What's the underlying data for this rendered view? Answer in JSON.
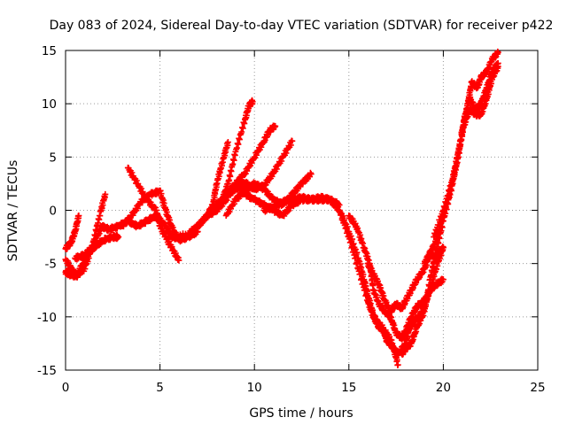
{
  "chart_data": {
    "type": "scatter",
    "title": "Day 083 of 2024, Sidereal Day-to-day VTEC variation (SDTVAR) for receiver p422",
    "xlabel": "GPS time / hours",
    "ylabel": "SDTVAR / TECUs",
    "xlim": [
      0,
      25
    ],
    "ylim": [
      -15,
      15
    ],
    "x_ticks": [
      "0",
      "5",
      "10",
      "15",
      "20",
      "25"
    ],
    "y_ticks": [
      "-15",
      "-10",
      "-5",
      "0",
      "5",
      "10",
      "15"
    ],
    "grid": true,
    "marker": "+",
    "color": "#ff0000",
    "series": [
      {
        "x": [
          0.0,
          0.3,
          0.5,
          0.7
        ],
        "y": [
          -3.6,
          -3.0,
          -2.0,
          -0.5
        ]
      },
      {
        "x": [
          0.0,
          0.3,
          0.6,
          1.0,
          1.4,
          1.8,
          2.1
        ],
        "y": [
          -4.6,
          -5.5,
          -6.1,
          -5.5,
          -3.5,
          -0.5,
          1.5
        ]
      },
      {
        "x": [
          0.0,
          0.2,
          0.6,
          0.9,
          1.2,
          1.5,
          2.0,
          2.5,
          2.8
        ],
        "y": [
          -5.8,
          -6.0,
          -6.2,
          -5.0,
          -4.0,
          -3.5,
          -2.8,
          -2.5,
          -2.5
        ]
      },
      {
        "x": [
          0.5,
          1.0,
          1.5,
          1.9,
          2.3,
          2.8,
          3.3,
          3.8,
          4.3,
          4.8,
          5.3,
          5.6,
          6.1
        ],
        "y": [
          -4.5,
          -4.2,
          -3.3,
          -1.5,
          -1.8,
          -1.5,
          -1.0,
          -1.5,
          -1.0,
          -0.5,
          -1.5,
          -2.5,
          -2.6
        ]
      },
      {
        "x": [
          3.3,
          3.8,
          4.3,
          4.8,
          5.0,
          5.3,
          5.6,
          6.0
        ],
        "y": [
          4.0,
          2.5,
          1.0,
          0.0,
          -1.5,
          -2.5,
          -3.5,
          -4.7
        ]
      },
      {
        "x": [
          3.0,
          3.5,
          4.0,
          4.5,
          5.0,
          5.3,
          5.6,
          6.0,
          6.5,
          7.0
        ],
        "y": [
          -1.5,
          -0.5,
          0.8,
          1.5,
          1.8,
          0.0,
          -1.5,
          -2.8,
          -2.5,
          -2.0
        ]
      },
      {
        "x": [
          5.5,
          6.5,
          7.0,
          7.5,
          8.0,
          8.3,
          8.6,
          9.0,
          9.5,
          9.7,
          9.9
        ],
        "y": [
          -2.5,
          -2.3,
          -1.5,
          -0.5,
          0.5,
          1.0,
          2.5,
          5.5,
          8.5,
          9.8,
          10.2
        ]
      },
      {
        "x": [
          6.5,
          7.0,
          7.5,
          7.8,
          8.0,
          8.3,
          8.6
        ],
        "y": [
          -2.2,
          -1.5,
          -0.5,
          0.5,
          2.5,
          4.5,
          6.4
        ]
      },
      {
        "x": [
          7.5,
          8.0,
          8.5,
          9.0,
          9.5,
          10.0,
          10.5,
          10.8,
          11.1
        ],
        "y": [
          -0.5,
          0.0,
          1.0,
          2.5,
          3.5,
          5.0,
          6.5,
          7.5,
          7.9
        ]
      },
      {
        "x": [
          8.0,
          8.5,
          9.0,
          9.5,
          10.0,
          10.5,
          11.0,
          11.5,
          12.0
        ],
        "y": [
          0.5,
          1.3,
          2.0,
          2.6,
          2.0,
          2.3,
          3.5,
          5.0,
          6.5
        ]
      },
      {
        "x": [
          8.5,
          9.0,
          9.5,
          10.0,
          10.5,
          11.0,
          11.5,
          12.0,
          12.5,
          13.0
        ],
        "y": [
          -0.5,
          1.0,
          1.8,
          2.5,
          2.0,
          1.0,
          0.5,
          1.5,
          2.5,
          3.4
        ]
      },
      {
        "x": [
          8.5,
          9.0,
          9.5,
          10.0,
          10.5,
          11.0,
          11.5,
          12.0,
          12.5,
          13.0,
          13.5,
          14.0,
          14.5
        ],
        "y": [
          1.5,
          2.5,
          1.5,
          1.0,
          0.5,
          0.0,
          -0.5,
          0.5,
          1.0,
          1.0,
          1.2,
          1.0,
          0.5
        ]
      },
      {
        "x": [
          10.5,
          11.0,
          11.5,
          12.0,
          12.5,
          13.0,
          13.5,
          14.0,
          14.5,
          15.0,
          15.5,
          16.0,
          16.3,
          16.6,
          17.0,
          17.3,
          17.6
        ],
        "y": [
          0.0,
          0.3,
          0.8,
          1.0,
          1.2,
          1.0,
          1.0,
          1.0,
          0.0,
          -2.5,
          -5.5,
          -8.5,
          -10.0,
          -11.0,
          -11.5,
          -12.5,
          -14.5
        ]
      },
      {
        "x": [
          14.0,
          14.5,
          15.0,
          15.5,
          15.8,
          16.0,
          16.3,
          16.5,
          16.8,
          17.0,
          17.3,
          17.6,
          18.0,
          18.2,
          18.5,
          18.8,
          19.0,
          19.3,
          19.6,
          20.0
        ],
        "y": [
          1.0,
          0.0,
          -2.0,
          -4.5,
          -6.5,
          -8.0,
          -9.8,
          -10.5,
          -11.0,
          -12.2,
          -12.8,
          -13.5,
          -12.5,
          -11.0,
          -10.3,
          -9.8,
          -9.0,
          -7.5,
          -5.5,
          -3.5
        ]
      },
      {
        "x": [
          15.0,
          15.4,
          15.8,
          16.1,
          16.3,
          16.6,
          16.9,
          17.2,
          17.5,
          17.8,
          18.0,
          18.3,
          18.6,
          19.0,
          19.3,
          19.6,
          20.0
        ],
        "y": [
          -0.5,
          -1.5,
          -3.5,
          -5.0,
          -7.5,
          -8.8,
          -9.5,
          -10.0,
          -11.5,
          -12.0,
          -11.3,
          -10.0,
          -9.0,
          -8.5,
          -7.5,
          -7.0,
          -6.5
        ]
      },
      {
        "x": [
          16.0,
          16.3,
          16.6,
          16.9,
          17.2,
          17.5,
          17.8,
          18.0,
          18.3,
          18.6,
          19.0,
          19.3,
          19.6,
          20.0
        ],
        "y": [
          -5.0,
          -6.0,
          -7.0,
          -8.5,
          -9.5,
          -8.8,
          -9.2,
          -8.5,
          -7.5,
          -6.5,
          -5.5,
          -4.0,
          -4.5,
          -3.5
        ]
      },
      {
        "x": [
          17.8,
          18.0,
          18.3,
          18.6,
          19.0,
          19.3,
          19.6,
          20.0,
          20.5,
          21.0,
          21.3,
          21.5,
          21.8,
          22.0,
          22.3,
          22.6,
          22.9
        ],
        "y": [
          -13.5,
          -13.0,
          -12.5,
          -11.0,
          -9.5,
          -6.5,
          -4.0,
          -1.0,
          2.5,
          7.5,
          10.0,
          12.0,
          11.5,
          12.5,
          13.0,
          14.2,
          14.8
        ]
      },
      {
        "x": [
          19.0,
          19.3,
          19.6,
          20.0,
          20.4,
          20.8,
          21.1,
          21.4,
          21.7,
          22.0,
          22.3,
          22.6,
          22.9
        ],
        "y": [
          -5.0,
          -4.0,
          -3.0,
          -0.5,
          2.0,
          5.0,
          8.5,
          10.5,
          9.5,
          10.0,
          11.5,
          13.0,
          13.8
        ]
      },
      {
        "x": [
          19.5,
          20.0,
          20.5,
          20.8,
          21.1,
          21.4,
          21.7,
          22.0,
          22.3,
          22.6,
          22.9
        ],
        "y": [
          -2.5,
          0.0,
          3.0,
          5.5,
          8.0,
          9.5,
          9.0,
          9.0,
          10.5,
          12.5,
          13.5
        ]
      }
    ]
  }
}
